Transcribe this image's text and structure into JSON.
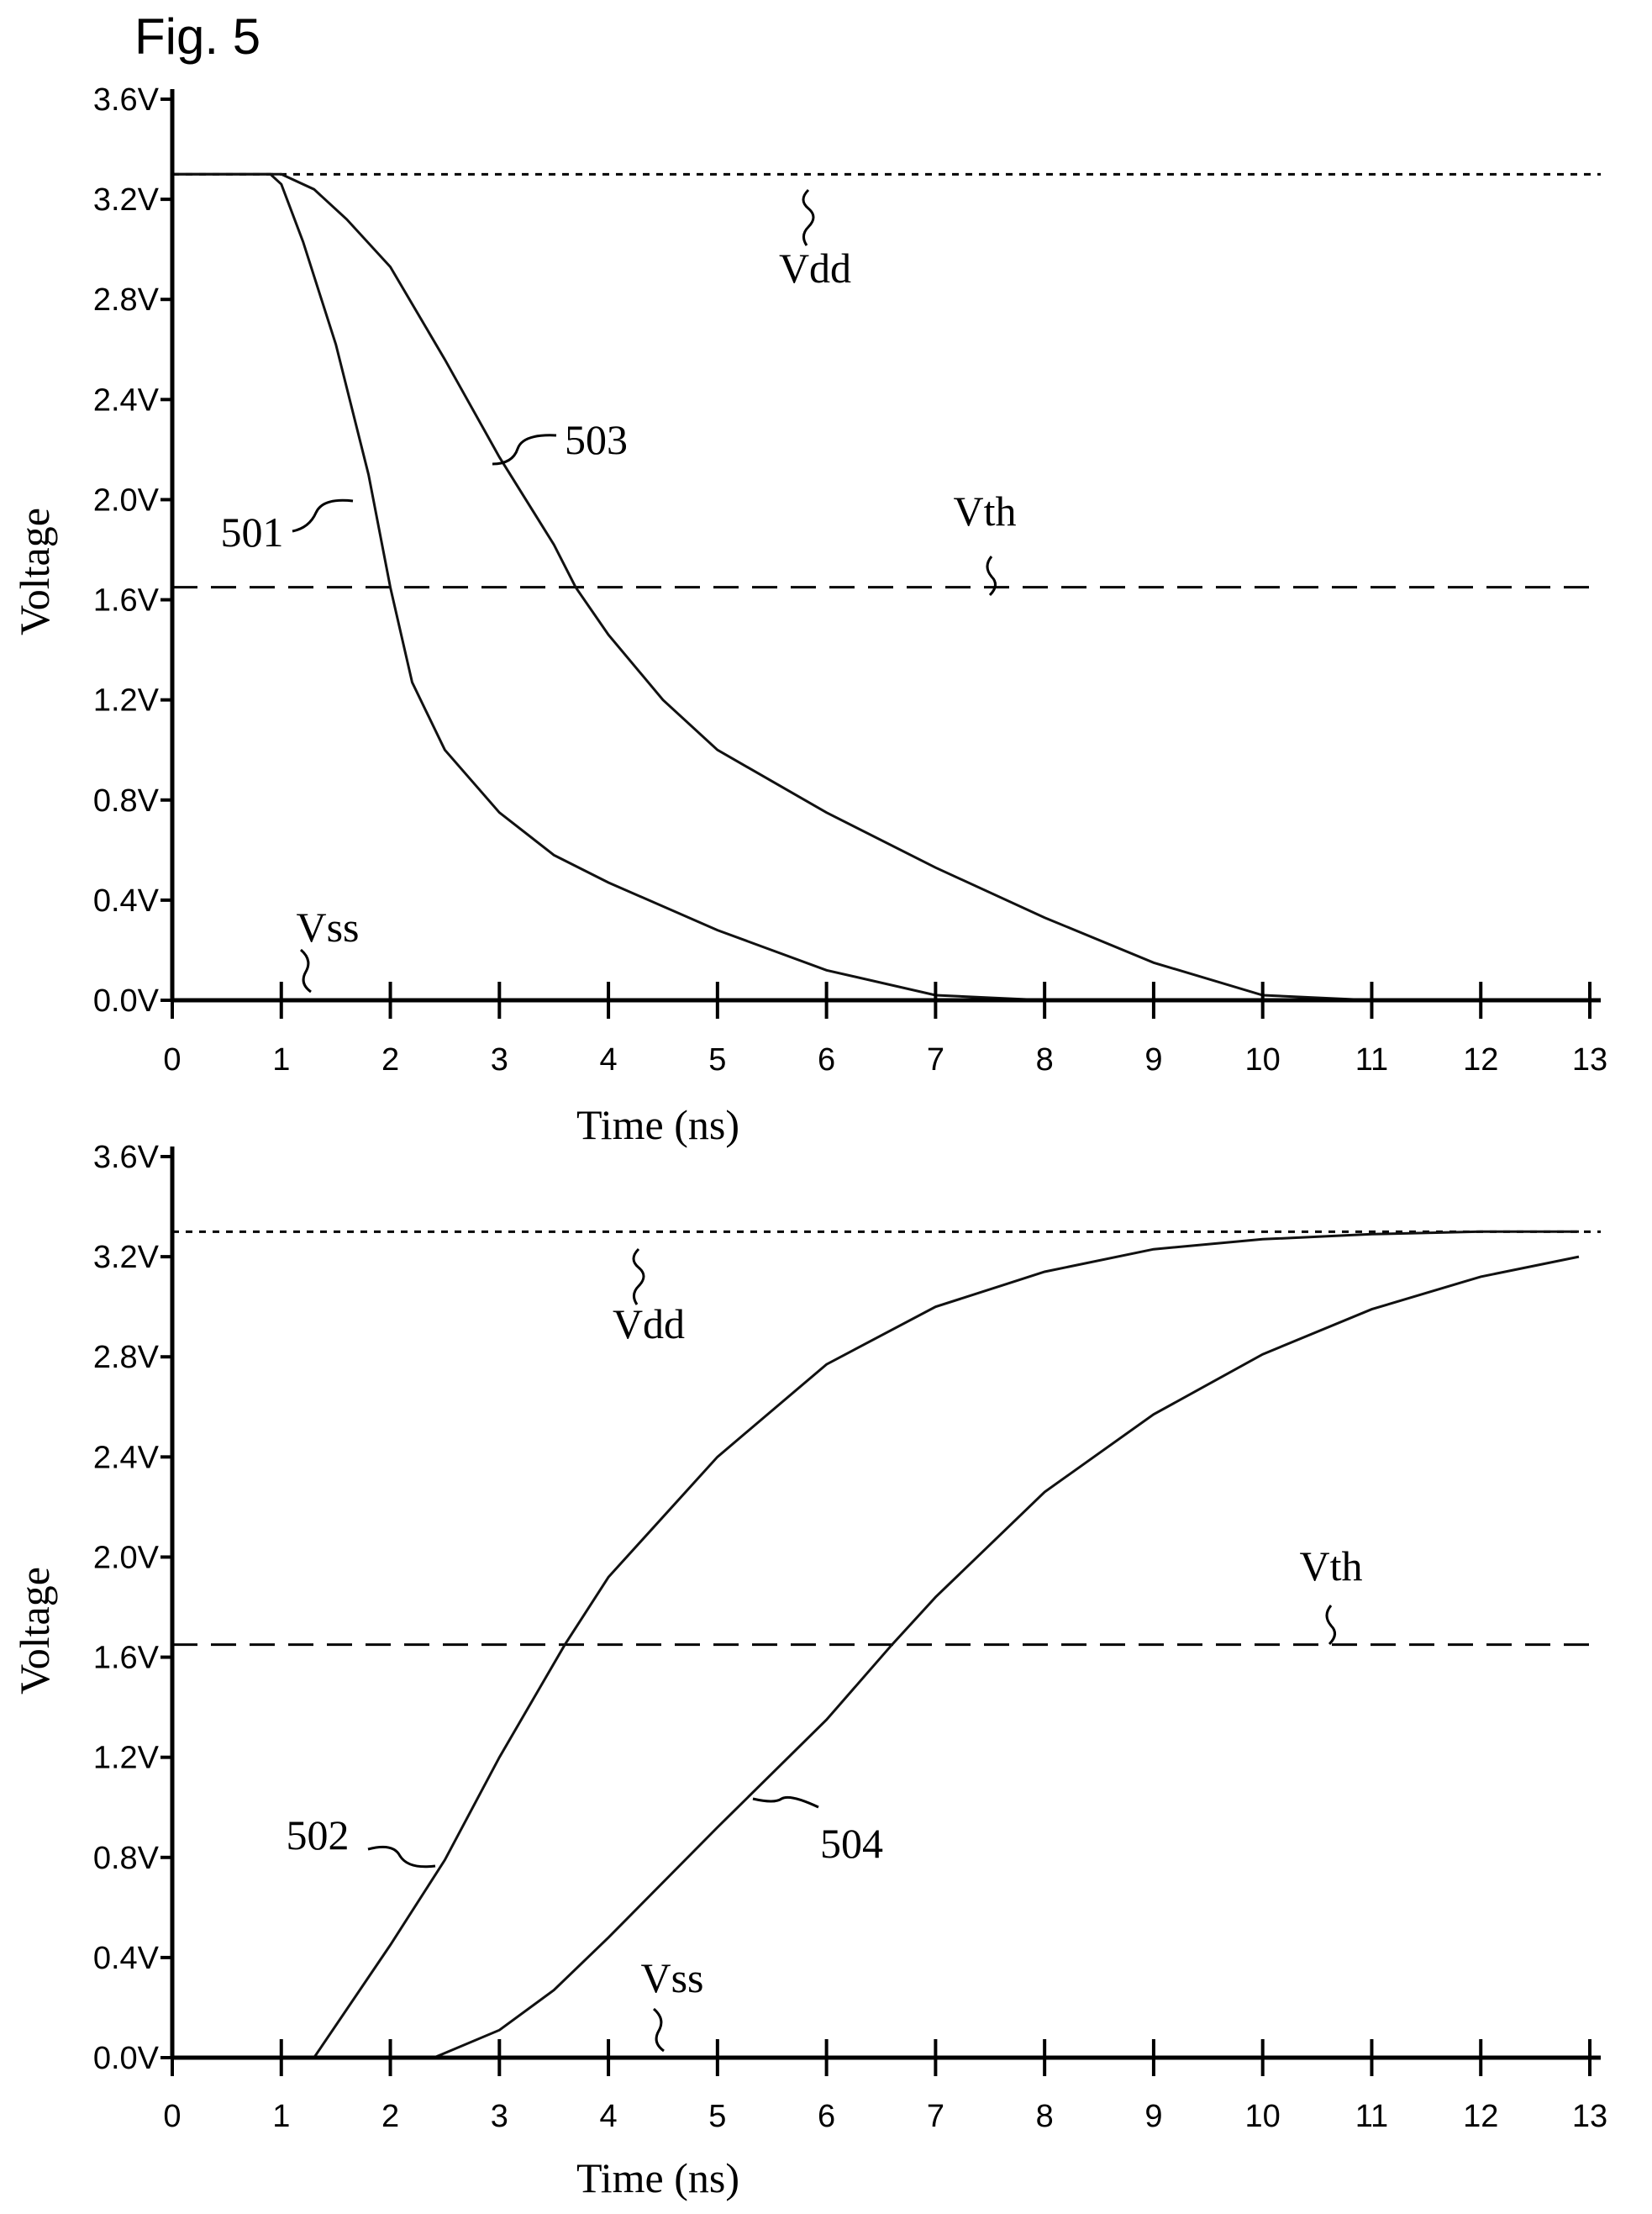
{
  "figure_label": "Fig. 5",
  "chart_data": [
    {
      "type": "line",
      "xlabel": "Time (ns)",
      "ylabel": "Voltage",
      "xlim": [
        0,
        13
      ],
      "ylim": [
        0,
        3.6
      ],
      "x_ticks": [
        "0",
        "1",
        "2",
        "3",
        "4",
        "5",
        "6",
        "7",
        "8",
        "9",
        "10",
        "11",
        "12",
        "13"
      ],
      "y_ticks": [
        "0.0V",
        "0.4V",
        "0.8V",
        "1.2V",
        "1.6V",
        "2.0V",
        "2.4V",
        "2.8V",
        "3.2V",
        "3.6V"
      ],
      "reference_lines": [
        {
          "name": "Vdd",
          "y": 3.3,
          "style": "short-dash"
        },
        {
          "name": "Vth",
          "y": 1.65,
          "style": "long-dash"
        },
        {
          "name": "Vss",
          "y": 0.0,
          "style": "solid"
        }
      ],
      "series": [
        {
          "name": "501",
          "x": [
            0.0,
            0.9,
            1.0,
            1.2,
            1.5,
            1.8,
            2.0,
            2.2,
            2.5,
            3.0,
            3.5,
            4.0,
            5.0,
            6.0,
            7.0,
            8.0,
            13.0
          ],
          "y": [
            3.3,
            3.3,
            3.26,
            3.03,
            2.62,
            2.1,
            1.65,
            1.27,
            1.0,
            0.75,
            0.58,
            0.47,
            0.28,
            0.12,
            0.02,
            0.0,
            0.0
          ]
        },
        {
          "name": "503",
          "x": [
            0.0,
            1.0,
            1.3,
            1.6,
            2.0,
            2.5,
            3.0,
            3.5,
            3.7,
            4.0,
            4.5,
            5.0,
            6.0,
            7.0,
            8.0,
            9.0,
            10.0,
            11.0,
            13.0
          ],
          "y": [
            3.3,
            3.3,
            3.24,
            3.12,
            2.93,
            2.56,
            2.17,
            1.82,
            1.65,
            1.46,
            1.2,
            1.0,
            0.75,
            0.53,
            0.33,
            0.15,
            0.02,
            0.0,
            0.0
          ]
        }
      ]
    },
    {
      "type": "line",
      "xlabel": "Time (ns)",
      "ylabel": "Voltage",
      "xlim": [
        0,
        13
      ],
      "ylim": [
        0,
        3.6
      ],
      "x_ticks": [
        "0",
        "1",
        "2",
        "3",
        "4",
        "5",
        "6",
        "7",
        "8",
        "9",
        "10",
        "11",
        "12",
        "13"
      ],
      "y_ticks": [
        "0.0V",
        "0.4V",
        "0.8V",
        "1.2V",
        "1.6V",
        "2.0V",
        "2.4V",
        "2.8V",
        "3.2V",
        "3.6V"
      ],
      "reference_lines": [
        {
          "name": "Vdd",
          "y": 3.3,
          "style": "short-dash"
        },
        {
          "name": "Vth",
          "y": 1.65,
          "style": "long-dash"
        },
        {
          "name": "Vss",
          "y": 0.0,
          "style": "solid"
        }
      ],
      "series": [
        {
          "name": "502",
          "x": [
            0.0,
            1.3,
            2.0,
            2.5,
            3.0,
            3.6,
            4.0,
            5.0,
            6.0,
            7.0,
            8.0,
            9.0,
            10.0,
            11.0,
            12.0,
            12.9
          ],
          "y": [
            0.0,
            0.0,
            0.45,
            0.79,
            1.2,
            1.65,
            1.92,
            2.4,
            2.77,
            3.0,
            3.14,
            3.23,
            3.27,
            3.29,
            3.3,
            3.3
          ]
        },
        {
          "name": "504",
          "x": [
            0.0,
            2.4,
            3.0,
            3.5,
            4.0,
            5.0,
            6.0,
            6.6,
            7.0,
            8.0,
            9.0,
            10.0,
            11.0,
            12.0,
            12.9
          ],
          "y": [
            0.0,
            0.0,
            0.11,
            0.27,
            0.48,
            0.92,
            1.35,
            1.65,
            1.84,
            2.26,
            2.57,
            2.81,
            2.99,
            3.12,
            3.2
          ]
        }
      ]
    }
  ]
}
